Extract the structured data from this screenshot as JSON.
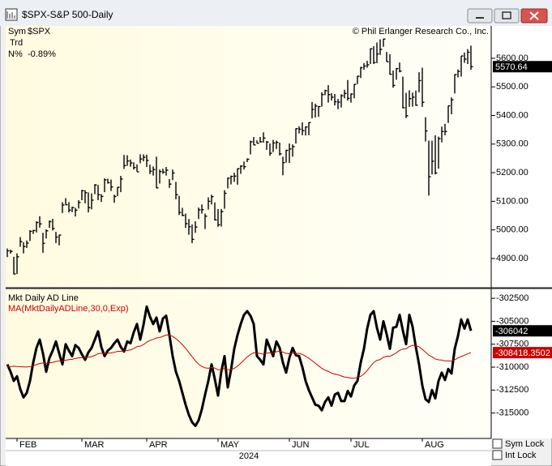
{
  "window": {
    "title": "$SPX-S&P 500-Daily"
  },
  "controls": {
    "sym_lock": "Sym Lock",
    "int_lock": "Int Lock"
  },
  "chart_data": [
    {
      "type": "ohlc",
      "color": "#000000",
      "info": [
        {
          "label": "Sym",
          "value": "$SPX"
        },
        {
          "label": "Trd"
        },
        {
          "label": "N%",
          "value": "-0.89%"
        }
      ],
      "annotation": "© Phil Erlanger Research Co., Inc.",
      "ylim": [
        4798,
        5713
      ],
      "yticks": [
        {
          "value": 4900,
          "label": "4900.00"
        },
        {
          "value": 5000,
          "label": "5000.00"
        },
        {
          "value": 5100,
          "label": "5100.00"
        },
        {
          "value": 5200,
          "label": "5200.00"
        },
        {
          "value": 5300,
          "label": "5300.00"
        },
        {
          "value": 5400,
          "label": "5400.00"
        },
        {
          "value": 5500,
          "label": "5500.00"
        },
        {
          "value": 5600,
          "label": "5600.00"
        }
      ],
      "xticks": [
        {
          "value": 3,
          "label": "FEB"
        },
        {
          "value": 23,
          "label": "MAR"
        },
        {
          "value": 43,
          "label": "APR"
        },
        {
          "value": 65,
          "label": "MAY"
        },
        {
          "value": 87,
          "label": "JUN"
        },
        {
          "value": 106,
          "label": "JUL"
        },
        {
          "value": 128,
          "label": "AUG"
        }
      ],
      "x_label": "2024",
      "high": [
        4935,
        4931,
        4906,
        4918,
        4975,
        4957,
        4963,
        4999,
        5000,
        5030,
        5048,
        4990,
        5002,
        5033,
        5039,
        4993,
        4983,
        5097,
        5111,
        5097,
        5081,
        5077,
        5104,
        5140,
        5139,
        5131,
        5128,
        5160,
        5157,
        5125,
        5180,
        5179,
        5176,
        5123,
        5150,
        5189,
        5262,
        5261,
        5246,
        5236,
        5229,
        5264,
        5264,
        5263,
        5228,
        5222,
        5256,
        5211,
        5214,
        5220,
        5178,
        5211,
        5168,
        5119,
        5077,
        5057,
        5038,
        5019,
        5030,
        5078,
        5089,
        5057,
        5114,
        5123,
        5096,
        5073,
        5073,
        5139,
        5183,
        5190,
        5200,
        5215,
        5226,
        5239,
        5250,
        5312,
        5325,
        5313,
        5325,
        5341,
        5311,
        5302,
        5315,
        5312,
        5305,
        5256,
        5280,
        5302,
        5299,
        5355,
        5362,
        5376,
        5362,
        5376,
        5447,
        5441,
        5433,
        5481,
        5490,
        5506,
        5478,
        5475,
        5458,
        5474,
        5490,
        5524,
        5477,
        5509,
        5539,
        5570,
        5583,
        5591,
        5635,
        5642,
        5655,
        5666,
        5668,
        5622,
        5614,
        5557,
        5566,
        5585,
        5536,
        5479,
        5488,
        5480,
        5487,
        5551,
        5567,
        5394,
        5312,
        5312,
        5331,
        5326,
        5361,
        5371,
        5434,
        5463,
        5544,
        5561,
        5608,
        5620,
        5632,
        5644
      ],
      "low": [
        4905,
        4917,
        4845,
        4846,
        4941,
        4918,
        4937,
        4961,
        4986,
        4991,
        5008,
        4920,
        4970,
        5007,
        4998,
        4954,
        4946,
        5059,
        5088,
        5061,
        5062,
        5047,
        5075,
        5104,
        5093,
        5061,
        5072,
        5125,
        5104,
        5098,
        5132,
        5162,
        5136,
        5095,
        5118,
        5132,
        5213,
        5224,
        5221,
        5211,
        5204,
        5233,
        5240,
        5220,
        5195,
        5190,
        5146,
        5162,
        5196,
        5190,
        5147,
        5174,
        5107,
        5052,
        5048,
        5007,
        4983,
        4954,
        4990,
        5038,
        5057,
        5003,
        5071,
        5089,
        5033,
        5011,
        5012,
        5074,
        5145,
        5159,
        5168,
        5158,
        5196,
        5211,
        5237,
        5264,
        5297,
        5303,
        5305,
        5305,
        5280,
        5259,
        5272,
        5283,
        5260,
        5191,
        5235,
        5234,
        5256,
        5302,
        5337,
        5331,
        5330,
        5331,
        5390,
        5393,
        5395,
        5431,
        5471,
        5445,
        5452,
        5435,
        5422,
        5428,
        5460,
        5452,
        5445,
        5460,
        5510,
        5531,
        5560,
        5567,
        5580,
        5580,
        5583,
        5612,
        5640,
        5588,
        5543,
        5497,
        5525,
        5551,
        5425,
        5391,
        5430,
        5431,
        5434,
        5481,
        5430,
        5309,
        5120,
        5194,
        5194,
        5214,
        5306,
        5331,
        5374,
        5404,
        5477,
        5533,
        5536,
        5584,
        5580,
        5560
      ],
      "close": [
        4927,
        4925,
        4846,
        4906,
        4959,
        4942,
        4954,
        4995,
        4998,
        5026,
        5021,
        4953,
        4997,
        5029,
        5005,
        4975,
        4982,
        5087,
        5088,
        5069,
        5078,
        5069,
        5096,
        5137,
        5130,
        5078,
        5104,
        5157,
        5123,
        5117,
        5175,
        5165,
        5150,
        5117,
        5149,
        5178,
        5225,
        5241,
        5234,
        5218,
        5203,
        5248,
        5254,
        5243,
        5205,
        5211,
        5147,
        5204,
        5202,
        5209,
        5160,
        5199,
        5123,
        5061,
        5051,
        5022,
        5011,
        4967,
        5010,
        5070,
        5071,
        5048,
        5100,
        5116,
        5035,
        5018,
        5064,
        5128,
        5181,
        5187,
        5188,
        5214,
        5223,
        5221,
        5247,
        5308,
        5297,
        5303,
        5308,
        5321,
        5307,
        5268,
        5304,
        5306,
        5266,
        5235,
        5278,
        5283,
        5291,
        5354,
        5352,
        5347,
        5360,
        5375,
        5421,
        5433,
        5431,
        5473,
        5487,
        5473,
        5464,
        5448,
        5447,
        5469,
        5477,
        5460,
        5475,
        5509,
        5537,
        5567,
        5573,
        5577,
        5633,
        5585,
        5615,
        5631,
        5667,
        5588,
        5544,
        5505,
        5564,
        5555,
        5427,
        5399,
        5459,
        5464,
        5436,
        5522,
        5446,
        5346,
        5186,
        5240,
        5199,
        5319,
        5344,
        5344,
        5434,
        5455,
        5543,
        5554,
        5608,
        5597,
        5621,
        5570.64
      ]
    },
    {
      "type": "line",
      "ylim": [
        -317770,
        -301520
      ],
      "yticks": [
        -315000,
        -312500,
        -310000,
        -307500,
        -305000,
        -302500
      ],
      "series": [
        {
          "name": "Mkt Daily AD Line",
          "color": "#000000",
          "values": [
            -309700,
            -310500,
            -311500,
            -311000,
            -312400,
            -313300,
            -312800,
            -311500,
            -309500,
            -307900,
            -307000,
            -308500,
            -310500,
            -309000,
            -308200,
            -307200,
            -308500,
            -309700,
            -307500,
            -308200,
            -308800,
            -307600,
            -307900,
            -308600,
            -309200,
            -308400,
            -307900,
            -307000,
            -306100,
            -307800,
            -308800,
            -308200,
            -307900,
            -307400,
            -307000,
            -307800,
            -308300,
            -307200,
            -307400,
            -306200,
            -305300,
            -307000,
            -305400,
            -303400,
            -304500,
            -305300,
            -304600,
            -306100,
            -304700,
            -304400,
            -306500,
            -308800,
            -310500,
            -311500,
            -312800,
            -314100,
            -315200,
            -316000,
            -316400,
            -315800,
            -314600,
            -313000,
            -311500,
            -309700,
            -311300,
            -313100,
            -310500,
            -308800,
            -312200,
            -310300,
            -308000,
            -306500,
            -305300,
            -304300,
            -303900,
            -304400,
            -305300,
            -308800,
            -309200,
            -309700,
            -307000,
            -307900,
            -308800,
            -307200,
            -307900,
            -309500,
            -310600,
            -309000,
            -307900,
            -308700,
            -308800,
            -310000,
            -311500,
            -312500,
            -313300,
            -314100,
            -314200,
            -314700,
            -313800,
            -313300,
            -314200,
            -313000,
            -312800,
            -313700,
            -313700,
            -312600,
            -313200,
            -312000,
            -311500,
            -309500,
            -308000,
            -305800,
            -304300,
            -303900,
            -305700,
            -307000,
            -305000,
            -306400,
            -308000,
            -305700,
            -305600,
            -304300,
            -306000,
            -307500,
            -304300,
            -305600,
            -307800,
            -309700,
            -312000,
            -313500,
            -313800,
            -312500,
            -313400,
            -311500,
            -310600,
            -311400,
            -310200,
            -310700,
            -308000,
            -306600,
            -304800,
            -305800,
            -304800,
            -306042
          ]
        },
        {
          "name": "MA(MktDailyADLine,30,0,Exp)",
          "color": "#cc0000",
          "values": [
            -310000,
            -309950,
            -309900,
            -309930,
            -309950,
            -309980,
            -309980,
            -309950,
            -309850,
            -309720,
            -309600,
            -309550,
            -309600,
            -309550,
            -309480,
            -309380,
            -309330,
            -309360,
            -309250,
            -309180,
            -309150,
            -309050,
            -308990,
            -308960,
            -308970,
            -308920,
            -308850,
            -308720,
            -308540,
            -308490,
            -308510,
            -308490,
            -308450,
            -308380,
            -308290,
            -308260,
            -308260,
            -308180,
            -308120,
            -307960,
            -307760,
            -307710,
            -307550,
            -307280,
            -307090,
            -306970,
            -306820,
            -306770,
            -306640,
            -306500,
            -306500,
            -306650,
            -306900,
            -307190,
            -307540,
            -307950,
            -308400,
            -308860,
            -309300,
            -309670,
            -309930,
            -310080,
            -310120,
            -310020,
            -310100,
            -310280,
            -310280,
            -310140,
            -310270,
            -310280,
            -310130,
            -309890,
            -309580,
            -309230,
            -308890,
            -308620,
            -308430,
            -308460,
            -308510,
            -308590,
            -308480,
            -308440,
            -308470,
            -308310,
            -308280,
            -308360,
            -308500,
            -308530,
            -308470,
            -308490,
            -308510,
            -308610,
            -308800,
            -309030,
            -309290,
            -309580,
            -309850,
            -310130,
            -310320,
            -310460,
            -310650,
            -310750,
            -310830,
            -310960,
            -311080,
            -311120,
            -311200,
            -311190,
            -311150,
            -310990,
            -310750,
            -310370,
            -309930,
            -309500,
            -309260,
            -309170,
            -308930,
            -308820,
            -308830,
            -308630,
            -308440,
            -308170,
            -308030,
            -308000,
            -307750,
            -307630,
            -307650,
            -307790,
            -308060,
            -308380,
            -308690,
            -308880,
            -309110,
            -309200,
            -309230,
            -309310,
            -309310,
            -309350,
            -309210,
            -308990,
            -308850,
            -308700,
            -308560,
            -308418.3502
          ]
        }
      ]
    }
  ]
}
